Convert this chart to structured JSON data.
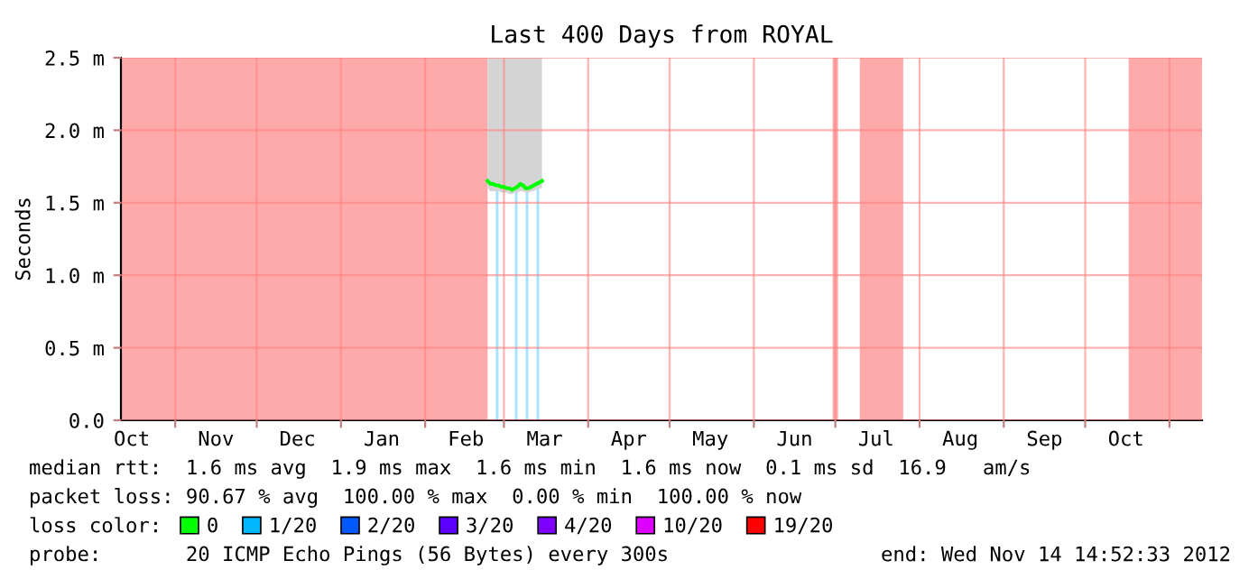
{
  "chart_data": {
    "type": "line",
    "title": "Last 400 Days from ROYAL",
    "ylabel": "Seconds",
    "x": [
      "2012-02-24",
      "2012-02-25",
      "2012-02-26",
      "2012-02-27",
      "2012-02-28",
      "2012-02-29",
      "2012-03-01",
      "2012-03-02",
      "2012-03-03",
      "2012-03-04",
      "2012-03-05",
      "2012-03-06",
      "2012-03-07",
      "2012-03-08",
      "2012-03-09",
      "2012-03-10",
      "2012-03-11",
      "2012-03-12",
      "2012-03-13",
      "2012-03-14",
      "2012-03-15"
    ],
    "series": [
      {
        "name": "0",
        "color": "#00ff00",
        "values": [
          1.65,
          1.63,
          1.63,
          1.62,
          1.62,
          1.61,
          1.61,
          1.6,
          1.6,
          1.59,
          1.6,
          1.61,
          1.63,
          1.62,
          1.6,
          1.6,
          1.61,
          1.62,
          1.63,
          1.64,
          1.65
        ],
        "lower": [
          1.6,
          1.58,
          1.58,
          1.58,
          1.58,
          1.57,
          1.57,
          1.57,
          1.56,
          1.56,
          1.57,
          1.57,
          1.58,
          1.58,
          1.57,
          1.57,
          1.58,
          1.58,
          1.59,
          1.6,
          1.6
        ],
        "upper": [
          2.5,
          2.5,
          2.5,
          2.5,
          2.5,
          2.5,
          2.5,
          2.5,
          2.5,
          2.5,
          2.5,
          2.5,
          2.5,
          2.5,
          2.5,
          2.5,
          2.5,
          2.5,
          2.5,
          2.5,
          2.5
        ]
      },
      {
        "name": "1/20",
        "color": "#00b8ff",
        "values": [
          null,
          null,
          null,
          null,
          null,
          null,
          null,
          null,
          null,
          null,
          null,
          null,
          null,
          null,
          null,
          null,
          null,
          null,
          null,
          null,
          null
        ]
      },
      {
        "name": "2/20",
        "color": "#0059ff",
        "values": [
          null,
          null,
          null,
          null,
          null,
          null,
          null,
          null,
          null,
          null,
          null,
          null,
          null,
          null,
          null,
          null,
          null,
          null,
          null,
          null,
          null
        ]
      },
      {
        "name": "3/20",
        "color": "#5e00ff",
        "values": [
          null,
          null,
          null,
          null,
          null,
          null,
          null,
          null,
          null,
          null,
          null,
          null,
          null,
          null,
          null,
          null,
          null,
          null,
          null,
          null,
          null
        ]
      },
      {
        "name": "4/20",
        "color": "#7e00ff",
        "values": [
          null,
          null,
          null,
          null,
          null,
          null,
          null,
          null,
          null,
          null,
          null,
          null,
          null,
          null,
          null,
          null,
          null,
          null,
          null,
          null,
          null
        ]
      },
      {
        "name": "10/20",
        "color": "#dd00ff",
        "values": [
          null,
          null,
          null,
          null,
          null,
          null,
          null,
          null,
          null,
          null,
          null,
          null,
          null,
          null,
          null,
          null,
          null,
          null,
          null,
          null,
          null
        ]
      },
      {
        "name": "19/20",
        "color": "#ff0000",
        "values": [
          null,
          null,
          null,
          null,
          null,
          null,
          null,
          null,
          null,
          null,
          null,
          null,
          null,
          null,
          null,
          null,
          null,
          null,
          null,
          null,
          null
        ]
      }
    ],
    "bands": [
      {
        "axis": "x",
        "from": "2011-10-12",
        "to": "2012-02-24",
        "color": "#ffaaaa"
      },
      {
        "axis": "x",
        "from": "2012-06-30",
        "to": "2012-07-02",
        "color": "#ffaaaa"
      },
      {
        "axis": "x",
        "from": "2012-07-10",
        "to": "2012-07-26",
        "color": "#ffaaaa"
      },
      {
        "axis": "x",
        "from": "2012-10-17",
        "to": "2012-11-13",
        "color": "#ffaaaa"
      },
      {
        "axis": "x",
        "from": "2012-02-27",
        "to": "2012-02-28",
        "color": "#a8e4ff"
      },
      {
        "axis": "x",
        "from": "2012-03-05",
        "to": "2012-03-06",
        "color": "#a8e4ff"
      },
      {
        "axis": "x",
        "from": "2012-03-09",
        "to": "2012-03-10",
        "color": "#a8e4ff"
      },
      {
        "axis": "x",
        "from": "2012-03-13",
        "to": "2012-03-14",
        "color": "#a8e4ff"
      }
    ],
    "xlim": [
      "2011-10-12",
      "2012-11-13"
    ],
    "xticks": [
      {
        "value": "2011-11-01",
        "label": null
      },
      {
        "value": "2011-12-01",
        "label": null
      },
      {
        "value": "2012-01-01",
        "label": null
      },
      {
        "value": "2012-02-01",
        "label": null
      },
      {
        "value": "2012-03-01",
        "label": null
      },
      {
        "value": "2012-04-01",
        "label": null
      },
      {
        "value": "2012-05-01",
        "label": null
      },
      {
        "value": "2012-06-01",
        "label": null
      },
      {
        "value": "2012-07-01",
        "label": null
      },
      {
        "value": "2012-08-01",
        "label": null
      },
      {
        "value": "2012-09-01",
        "label": null
      },
      {
        "value": "2012-10-01",
        "label": null
      },
      {
        "value": "2012-11-01",
        "label": null
      },
      {
        "value": "2011-10-16",
        "label": "Oct"
      },
      {
        "value": "2011-11-16",
        "label": "Nov"
      },
      {
        "value": "2011-12-16",
        "label": "Dec"
      },
      {
        "value": "2012-01-16",
        "label": "Jan"
      },
      {
        "value": "2012-02-16",
        "label": "Feb"
      },
      {
        "value": "2012-03-16",
        "label": "Mar"
      },
      {
        "value": "2012-04-16",
        "label": "Apr"
      },
      {
        "value": "2012-05-16",
        "label": "May"
      },
      {
        "value": "2012-06-16",
        "label": "Jun"
      },
      {
        "value": "2012-07-16",
        "label": "Jul"
      },
      {
        "value": "2012-08-16",
        "label": "Aug"
      },
      {
        "value": "2012-09-16",
        "label": "Sep"
      },
      {
        "value": "2012-10-16",
        "label": "Oct"
      }
    ],
    "ylim": [
      0,
      2.5
    ],
    "yticks": [
      {
        "value": 0,
        "label": "0.0"
      },
      {
        "value": 0.5,
        "label": "0.5 m"
      },
      {
        "value": 1.0,
        "label": "1.0 m"
      },
      {
        "value": 1.5,
        "label": "1.5 m"
      },
      {
        "value": 2.0,
        "label": "2.0 m"
      },
      {
        "value": 2.5,
        "label": "2.5 m"
      }
    ],
    "grid": true,
    "legend": "bottom",
    "legend_title": "loss color:",
    "annotations": [
      "median rtt:  1.6 ms avg  1.9 ms max  1.6 ms min  1.6 ms now  0.1 ms sd  16.9   am/s",
      "packet loss: 90.67 % avg  100.00 % max  0.00 % min  100.00 % now",
      "probe:       20 ICMP Echo Pings (56 Bytes) every 300s",
      "end: Wed Nov 14 14:52:33 2012"
    ]
  }
}
